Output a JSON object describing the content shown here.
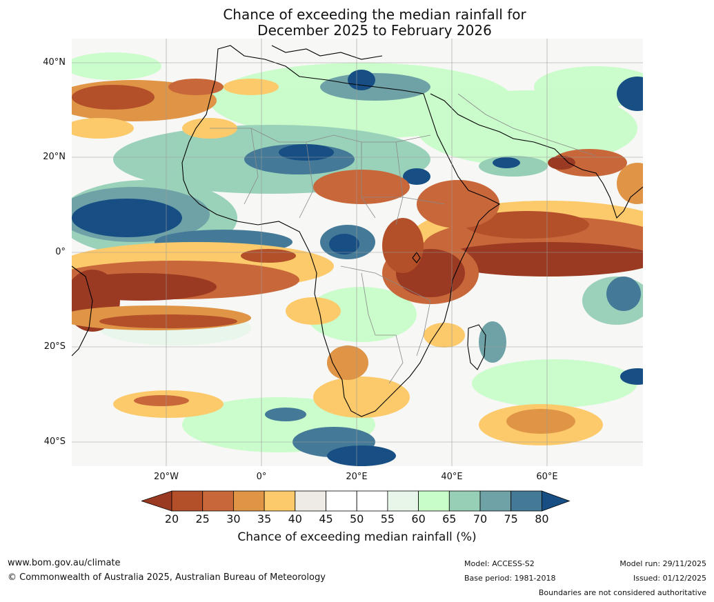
{
  "title": {
    "line1": "Chance of exceeding the median rainfall for",
    "line2": "December 2025 to February 2026"
  },
  "latitude_labels": [
    "40°N",
    "20°N",
    "0°",
    "20°S",
    "40°S"
  ],
  "longitude_labels": [
    "20°W",
    "0°",
    "20°E",
    "40°E",
    "60°E"
  ],
  "colorbar": {
    "ticks": [
      "20",
      "25",
      "30",
      "35",
      "40",
      "45",
      "50",
      "55",
      "60",
      "65",
      "70",
      "75",
      "80"
    ],
    "label": "Chance of exceeding median rainfall (%)",
    "colors": [
      "#9b3a22",
      "#b3502a",
      "#c8673a",
      "#df9446",
      "#fcca6b",
      "#eeebe6",
      "#ffffff",
      "#ffffff",
      "#e8f6ea",
      "#c8fcc9",
      "#96cfb6",
      "#6fa2a6",
      "#447a98",
      "#174f84"
    ]
  },
  "footer": {
    "website": "www.bom.gov.au/climate",
    "copyright": "© Commonwealth of Australia 2025, Australian Bureau of Meteorology",
    "model": "Model: ACCESS-S2",
    "base_period": "Base period: 1981-2018",
    "model_run": "Model run: 29/11/2025",
    "issued": "Issued: 01/12/2025",
    "disclaimer": "Boundaries are not considered authoritative"
  }
}
